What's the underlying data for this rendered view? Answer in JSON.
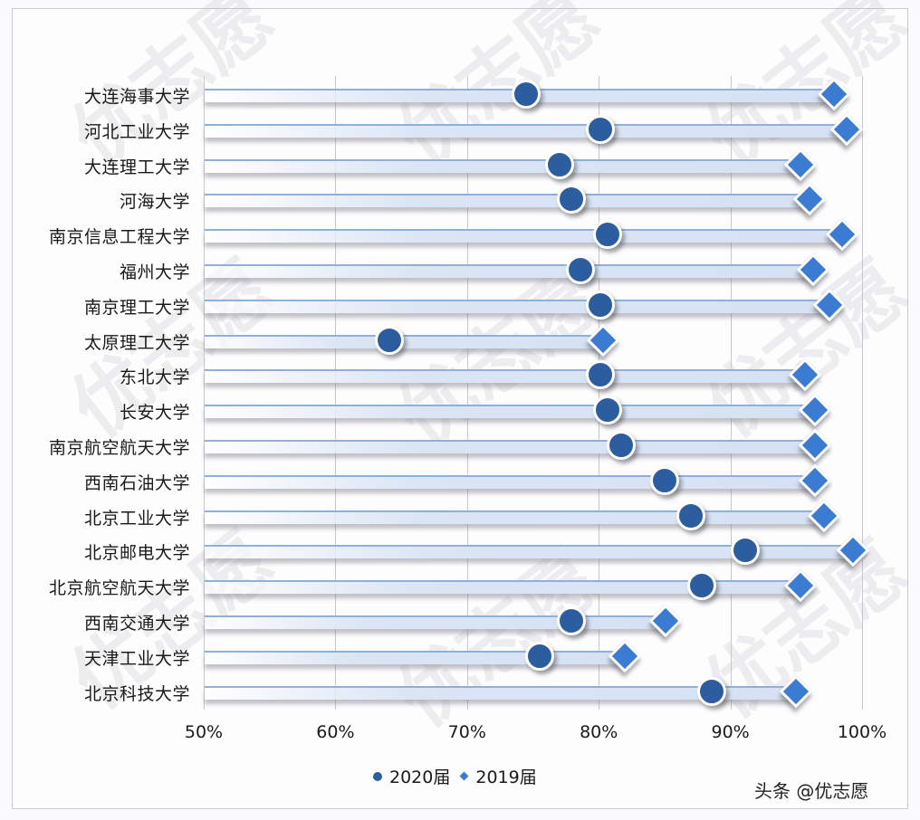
{
  "chart_data": {
    "type": "dumbbell",
    "title": "",
    "xlabel": "",
    "ylabel": "",
    "xlim": [
      0.5,
      1.0
    ],
    "x_ticks": [
      "50%",
      "60%",
      "70%",
      "80%",
      "90%",
      "100%"
    ],
    "grid": true,
    "legend_position": "bottom",
    "categories": [
      "大连海事大学",
      "河北工业大学",
      "大连理工大学",
      "河海大学",
      "南京信息工程大学",
      "福州大学",
      "南京理工大学",
      "太原理工大学",
      "东北大学",
      "长安大学",
      "南京航空航天大学",
      "西南石油大学",
      "北京工业大学",
      "北京邮电大学",
      "北京航空航天大学",
      "西南交通大学",
      "天津工业大学",
      "北京科技大学"
    ],
    "series": [
      {
        "name": "2020届",
        "marker": "circle",
        "color": "#2c5e9f",
        "values": [
          74.5,
          80.1,
          77.0,
          77.9,
          80.7,
          78.6,
          80.1,
          64.1,
          80.1,
          80.7,
          81.7,
          85.0,
          87.0,
          91.1,
          87.8,
          77.9,
          75.5,
          88.6
        ]
      },
      {
        "name": "2019届",
        "marker": "diamond",
        "color": "#3b7bd2",
        "values": [
          97.9,
          98.8,
          95.3,
          96.0,
          98.5,
          96.3,
          97.5,
          80.3,
          95.7,
          96.4,
          96.4,
          96.4,
          97.1,
          99.3,
          95.3,
          85.1,
          82.0,
          95.0
        ]
      }
    ],
    "unit": "%"
  },
  "legend": {
    "items": [
      {
        "label": "2020届",
        "marker": "circle"
      },
      {
        "label": "2019届",
        "marker": "diamond"
      }
    ]
  },
  "credit": "头条 @优志愿",
  "watermark": "优志愿",
  "colors": {
    "circle": "#2c5e9f",
    "diamond": "#3b7bd2",
    "track": "#d6e2f3",
    "grid": "#c8c8cc"
  }
}
